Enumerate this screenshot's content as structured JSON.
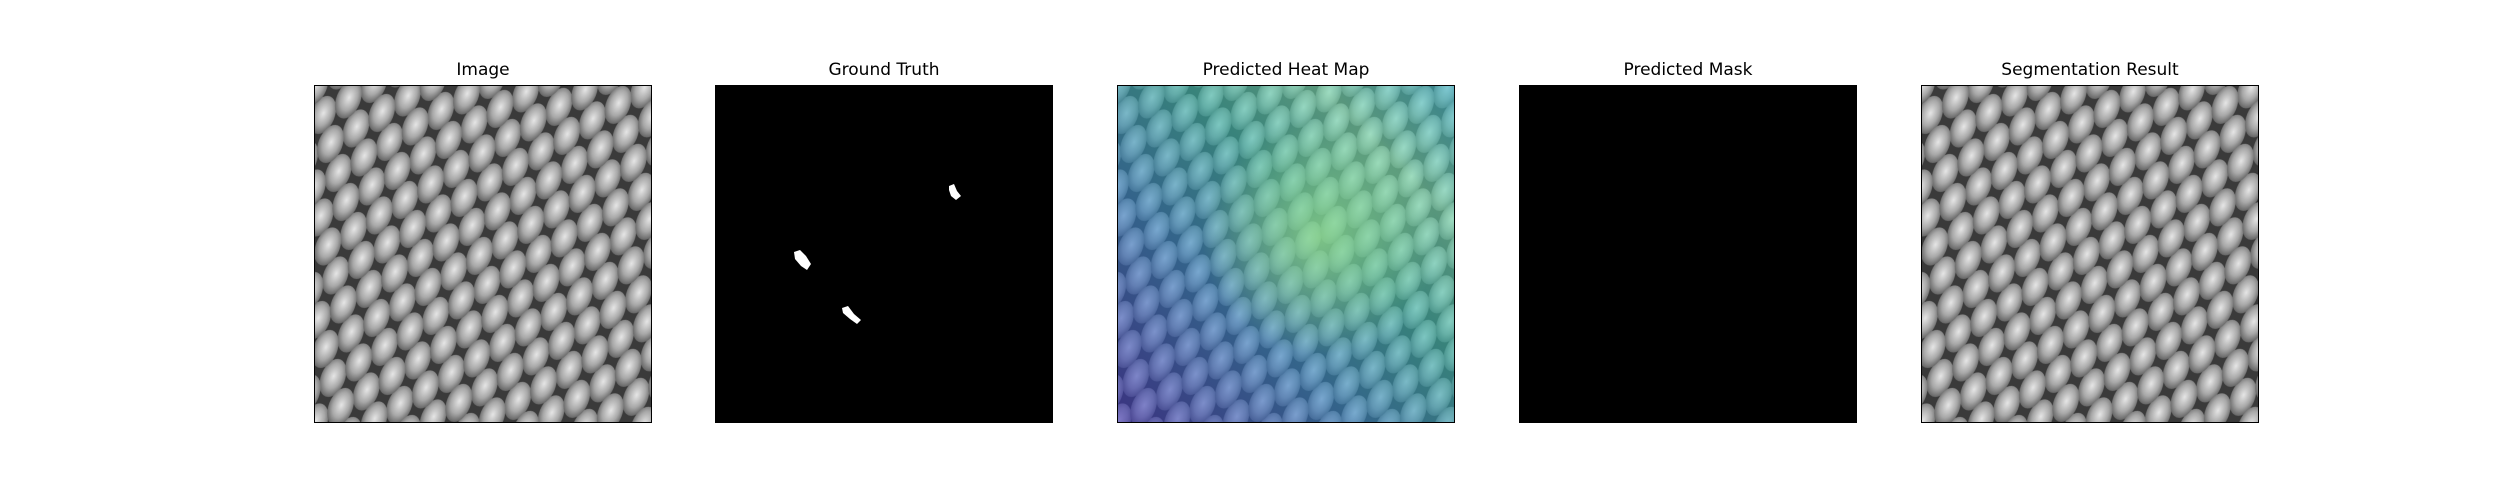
{
  "figure": {
    "panels": [
      {
        "title": "Image",
        "kind": "texture"
      },
      {
        "title": "Ground Truth",
        "kind": "mask-gt"
      },
      {
        "title": "Predicted Heat Map",
        "kind": "heatmap"
      },
      {
        "title": "Predicted Mask",
        "kind": "mask-empty"
      },
      {
        "title": "Segmentation Result",
        "kind": "texture"
      }
    ],
    "colors": {
      "background": "#ffffff",
      "mask_background": "#000000",
      "mask_foreground": "#ffffff",
      "texture_dark": "#3a3a3a",
      "texture_light": "#d8d8d8",
      "heat_low": "#3b2fb0",
      "heat_mid": "#36b3a6",
      "heat_high": "#7fe0a0"
    }
  }
}
